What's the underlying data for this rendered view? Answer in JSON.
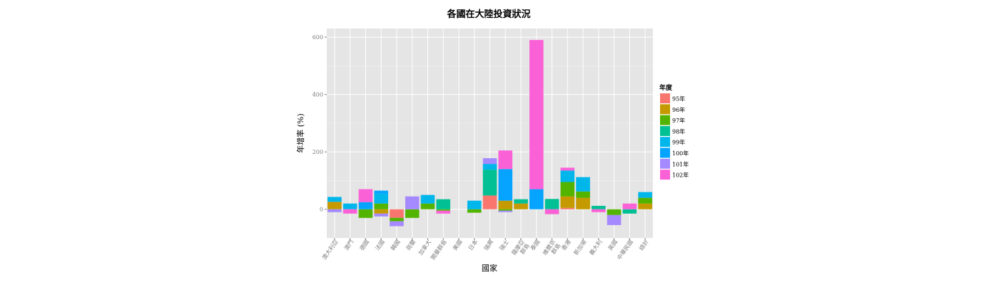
{
  "chart_data": {
    "type": "bar",
    "stacked": true,
    "title": "各國在大陸投資狀況",
    "xlabel": "國家",
    "ylabel": "年增率 (%)",
    "ylim": [
      -100,
      630
    ],
    "yticks": [
      0,
      200,
      400,
      600
    ],
    "ytick_labels": [
      "0",
      "200",
      "400",
      "600"
    ],
    "grid": true,
    "legend_title": "年度",
    "legend_position": "right",
    "categories": [
      "澳大利亞",
      "澳門",
      "德國",
      "法國",
      "韓國",
      "荷蘭",
      "加拿大",
      "開曼群島",
      "美國",
      "日本",
      "瑞典",
      "瑞士",
      "薩摩亞群島",
      "泰國",
      "維爾京群島",
      "香港",
      "新加坡",
      "義大利",
      "英國",
      "中華民國",
      "總計"
    ],
    "category_labels": [
      [
        "澳大利亞"
      ],
      [
        "澳門"
      ],
      [
        "德國"
      ],
      [
        "法國"
      ],
      [
        "韓國"
      ],
      [
        "荷蘭"
      ],
      [
        "加拿大"
      ],
      [
        "開曼群島"
      ],
      [
        "美國"
      ],
      [
        "日本"
      ],
      [
        "瑞典"
      ],
      [
        "瑞士"
      ],
      [
        "薩摩亞",
        "群島"
      ],
      [
        "泰國"
      ],
      [
        "維爾京",
        "群島"
      ],
      [
        "香港"
      ],
      [
        "新加坡"
      ],
      [
        "義大利"
      ],
      [
        "英國"
      ],
      [
        "中華民國"
      ],
      [
        "總計"
      ]
    ],
    "series": [
      {
        "name": "95年",
        "color": "#F8766D",
        "values": [
          0,
          0,
          0,
          0,
          -30,
          0,
          0,
          0,
          0,
          0,
          48,
          0,
          0,
          0,
          0,
          5,
          0,
          0,
          0,
          0,
          0
        ]
      },
      {
        "name": "96年",
        "color": "#C49A00",
        "values": [
          26,
          0,
          0,
          -15,
          0,
          0,
          0,
          0,
          0,
          0,
          0,
          30,
          20,
          0,
          0,
          40,
          40,
          0,
          0,
          0,
          20
        ]
      },
      {
        "name": "97年",
        "color": "#53B400",
        "values": [
          0,
          0,
          -30,
          20,
          -12,
          -30,
          20,
          -5,
          0,
          -12,
          0,
          -5,
          0,
          0,
          0,
          50,
          22,
          0,
          -20,
          0,
          20
        ]
      },
      {
        "name": "98年",
        "color": "#00C094",
        "values": [
          0,
          0,
          0,
          0,
          0,
          0,
          0,
          35,
          0,
          0,
          90,
          0,
          15,
          0,
          36,
          0,
          0,
          12,
          0,
          -15,
          0
        ]
      },
      {
        "name": "99年",
        "color": "#00B6EB",
        "values": [
          17,
          20,
          0,
          35,
          0,
          0,
          30,
          0,
          0,
          30,
          20,
          0,
          0,
          0,
          0,
          40,
          50,
          0,
          0,
          0,
          20
        ]
      },
      {
        "name": "100年",
        "color": "#06A4FF",
        "values": [
          0,
          0,
          25,
          10,
          0,
          0,
          0,
          0,
          0,
          0,
          0,
          110,
          0,
          70,
          0,
          0,
          0,
          0,
          0,
          0,
          0
        ]
      },
      {
        "name": "101年",
        "color": "#A58AFF",
        "values": [
          -10,
          0,
          0,
          -10,
          -17,
          45,
          0,
          0,
          0,
          0,
          20,
          -5,
          0,
          0,
          0,
          0,
          0,
          0,
          -35,
          0,
          0
        ]
      },
      {
        "name": "102年",
        "color": "#FB61D7",
        "values": [
          0,
          -15,
          45,
          0,
          0,
          0,
          0,
          -10,
          0,
          0,
          0,
          65,
          0,
          520,
          -17,
          10,
          0,
          -10,
          0,
          20,
          0
        ]
      }
    ]
  }
}
